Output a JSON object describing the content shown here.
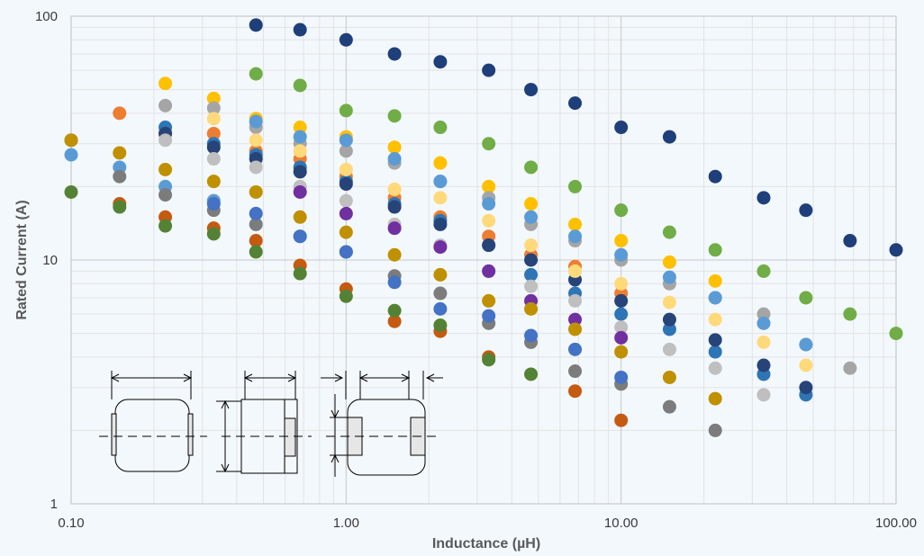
{
  "chart_data": {
    "type": "scatter",
    "xlabel": "Inductance (µH)",
    "ylabel": "Rated Current (A)",
    "x_scale": "log",
    "y_scale": "log",
    "xlim": [
      0.1,
      100
    ],
    "ylim": [
      1,
      100
    ],
    "x_ticks": [
      "0.10",
      "1.00",
      "10.00",
      "100.00"
    ],
    "y_ticks": [
      "1",
      "10",
      "100"
    ],
    "grid": true,
    "legend": "none",
    "background": "#f3f8fd",
    "series": [
      {
        "color": "#1f3f7a",
        "points": [
          [
            0.47,
            92
          ],
          [
            0.68,
            88
          ],
          [
            1.0,
            80
          ],
          [
            1.5,
            70
          ],
          [
            2.2,
            65
          ],
          [
            3.3,
            60
          ],
          [
            4.7,
            50
          ],
          [
            6.8,
            44
          ],
          [
            10,
            35
          ],
          [
            15,
            32
          ],
          [
            22,
            22
          ],
          [
            33,
            18
          ],
          [
            47,
            16
          ],
          [
            68,
            12
          ],
          [
            100,
            11
          ]
        ]
      },
      {
        "color": "#70ad47",
        "points": [
          [
            0.47,
            58
          ],
          [
            0.68,
            52
          ],
          [
            1.0,
            41
          ],
          [
            1.5,
            39
          ],
          [
            2.2,
            35
          ],
          [
            3.3,
            30
          ],
          [
            4.7,
            24
          ],
          [
            6.8,
            20
          ],
          [
            10,
            16
          ],
          [
            15,
            13
          ],
          [
            22,
            11
          ],
          [
            33,
            9
          ],
          [
            47,
            7
          ],
          [
            68,
            6
          ],
          [
            100,
            5
          ]
        ]
      },
      {
        "color": "#ffc000",
        "points": [
          [
            0.22,
            53
          ],
          [
            0.33,
            46
          ],
          [
            0.47,
            38
          ],
          [
            0.68,
            35
          ],
          [
            1.0,
            32
          ],
          [
            1.5,
            29
          ],
          [
            2.2,
            25
          ],
          [
            3.3,
            20
          ],
          [
            4.7,
            17
          ],
          [
            6.8,
            14
          ],
          [
            10,
            12
          ],
          [
            15,
            9.8
          ],
          [
            22,
            8.2
          ]
        ]
      },
      {
        "color": "#ed7d31",
        "points": [
          [
            0.15,
            40
          ],
          [
            0.22,
            33
          ],
          [
            0.33,
            33
          ],
          [
            0.47,
            28
          ],
          [
            0.68,
            26
          ],
          [
            1.0,
            22
          ],
          [
            1.5,
            18
          ],
          [
            2.2,
            15
          ],
          [
            3.3,
            12.5
          ],
          [
            4.7,
            10.5
          ],
          [
            6.8,
            9.4
          ],
          [
            10,
            7.3
          ]
        ]
      },
      {
        "color": "#a5a5a5",
        "points": [
          [
            0.22,
            43
          ],
          [
            0.33,
            42
          ],
          [
            0.47,
            35
          ],
          [
            0.68,
            30
          ],
          [
            1.0,
            28
          ],
          [
            1.5,
            25
          ],
          [
            2.2,
            21
          ],
          [
            3.3,
            18
          ],
          [
            4.7,
            14
          ],
          [
            6.8,
            12
          ],
          [
            10,
            10
          ],
          [
            15,
            8
          ],
          [
            22,
            7
          ],
          [
            33,
            6
          ],
          [
            47,
            4.5
          ],
          [
            68,
            3.6
          ]
        ]
      },
      {
        "color": "#5b9bd5",
        "points": [
          [
            0.1,
            27
          ],
          [
            0.15,
            24
          ],
          [
            0.22,
            20
          ],
          [
            0.33,
            17.5
          ],
          [
            0.47,
            37
          ],
          [
            0.68,
            32
          ],
          [
            1.0,
            31
          ],
          [
            1.5,
            26
          ],
          [
            2.2,
            21
          ],
          [
            3.3,
            17
          ],
          [
            4.7,
            15
          ],
          [
            6.8,
            12.5
          ],
          [
            10,
            10.5
          ],
          [
            15,
            8.5
          ],
          [
            22,
            7
          ],
          [
            33,
            5.5
          ],
          [
            47,
            4.5
          ]
        ]
      },
      {
        "color": "#2e75b6",
        "points": [
          [
            0.22,
            35
          ],
          [
            0.33,
            30
          ],
          [
            0.47,
            27
          ],
          [
            0.68,
            24
          ],
          [
            1.0,
            21
          ],
          [
            1.5,
            17
          ],
          [
            2.2,
            14.5
          ],
          [
            3.3,
            11.5
          ],
          [
            4.7,
            8.7
          ],
          [
            6.8,
            7.3
          ],
          [
            10,
            6
          ],
          [
            15,
            5.2
          ],
          [
            22,
            4.2
          ],
          [
            33,
            3.4
          ],
          [
            47,
            2.8
          ]
        ]
      },
      {
        "color": "#264478",
        "points": [
          [
            0.22,
            33
          ],
          [
            0.33,
            29
          ],
          [
            0.47,
            26
          ],
          [
            0.68,
            23
          ],
          [
            1.0,
            20.5
          ],
          [
            1.5,
            16.5
          ],
          [
            2.2,
            14
          ],
          [
            3.3,
            11.5
          ],
          [
            4.7,
            10
          ],
          [
            6.8,
            8.3
          ],
          [
            10,
            6.8
          ],
          [
            15,
            5.7
          ],
          [
            22,
            4.7
          ],
          [
            33,
            3.7
          ],
          [
            47,
            3.0
          ]
        ]
      },
      {
        "color": "#ffd97a",
        "points": [
          [
            0.33,
            38
          ],
          [
            0.47,
            31
          ],
          [
            0.68,
            28
          ],
          [
            1.0,
            23.5
          ],
          [
            1.5,
            19.5
          ],
          [
            2.2,
            18
          ],
          [
            3.3,
            14.5
          ],
          [
            4.7,
            11.5
          ],
          [
            6.8,
            9
          ],
          [
            10,
            8
          ],
          [
            15,
            6.7
          ],
          [
            22,
            5.7
          ],
          [
            33,
            4.6
          ],
          [
            47,
            3.7
          ]
        ]
      },
      {
        "color": "#bfbfbf",
        "points": [
          [
            0.22,
            31
          ],
          [
            0.33,
            26
          ],
          [
            0.47,
            24
          ],
          [
            0.68,
            20
          ],
          [
            1.0,
            17.5
          ],
          [
            1.5,
            14
          ],
          [
            2.2,
            11.5
          ],
          [
            3.3,
            9
          ],
          [
            4.7,
            7.8
          ],
          [
            6.8,
            6.8
          ],
          [
            10,
            5.3
          ],
          [
            15,
            4.3
          ],
          [
            22,
            3.6
          ],
          [
            33,
            2.8
          ]
        ]
      },
      {
        "color": "#7c7c7c",
        "points": [
          [
            0.1,
            31
          ],
          [
            0.15,
            22
          ],
          [
            0.22,
            18.5
          ],
          [
            0.33,
            16
          ],
          [
            0.47,
            14
          ],
          [
            0.68,
            12.5
          ],
          [
            1.0,
            10.8
          ],
          [
            1.5,
            8.6
          ],
          [
            2.2,
            7.3
          ],
          [
            3.3,
            5.5
          ],
          [
            4.7,
            4.6
          ],
          [
            6.8,
            3.5
          ],
          [
            10,
            3.1
          ],
          [
            15,
            2.5
          ],
          [
            22,
            2.0
          ]
        ]
      },
      {
        "color": "#4472c4",
        "points": [
          [
            0.33,
            17
          ],
          [
            0.47,
            15.5
          ],
          [
            0.68,
            12.5
          ],
          [
            1.0,
            10.8
          ],
          [
            1.5,
            8.1
          ],
          [
            2.2,
            6.3
          ],
          [
            3.3,
            5.9
          ],
          [
            4.7,
            4.9
          ],
          [
            6.8,
            4.3
          ],
          [
            10,
            3.3
          ]
        ]
      },
      {
        "color": "#7030a0",
        "points": [
          [
            0.68,
            19
          ],
          [
            1.0,
            15.5
          ],
          [
            1.5,
            13.5
          ],
          [
            2.2,
            11.3
          ],
          [
            3.3,
            9
          ],
          [
            4.7,
            6.8
          ],
          [
            6.8,
            5.7
          ],
          [
            10,
            4.8
          ]
        ]
      },
      {
        "color": "#bf9000",
        "points": [
          [
            0.1,
            31
          ],
          [
            0.15,
            27.5
          ],
          [
            0.22,
            23.5
          ],
          [
            0.33,
            21
          ],
          [
            0.47,
            19
          ],
          [
            0.68,
            15
          ],
          [
            1.0,
            13
          ],
          [
            1.5,
            10.5
          ],
          [
            2.2,
            8.7
          ],
          [
            3.3,
            6.8
          ],
          [
            4.7,
            6.3
          ],
          [
            6.8,
            5.2
          ],
          [
            10,
            4.2
          ],
          [
            15,
            3.3
          ],
          [
            22,
            2.7
          ]
        ]
      },
      {
        "color": "#c55a11",
        "points": [
          [
            0.15,
            17
          ],
          [
            0.22,
            15
          ],
          [
            0.33,
            13.5
          ],
          [
            0.47,
            12
          ],
          [
            0.68,
            9.5
          ],
          [
            1.0,
            7.6
          ],
          [
            1.5,
            5.6
          ],
          [
            2.2,
            5.1
          ],
          [
            3.3,
            4.0
          ],
          [
            6.8,
            2.9
          ],
          [
            10,
            2.2
          ]
        ]
      },
      {
        "color": "#548235",
        "points": [
          [
            0.1,
            19
          ],
          [
            0.15,
            16.5
          ],
          [
            0.22,
            13.8
          ],
          [
            0.33,
            12.8
          ],
          [
            0.47,
            10.8
          ],
          [
            0.68,
            8.8
          ],
          [
            1.0,
            7.1
          ],
          [
            1.5,
            6.2
          ],
          [
            2.2,
            5.4
          ],
          [
            3.3,
            3.9
          ],
          [
            4.7,
            3.4
          ]
        ]
      }
    ]
  }
}
